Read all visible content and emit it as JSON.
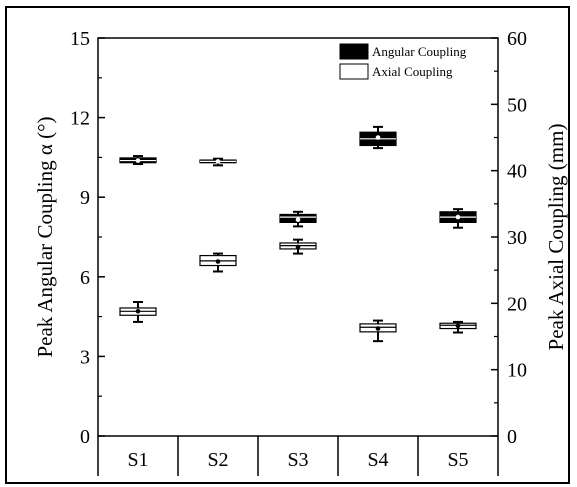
{
  "chart_data": {
    "type": "box",
    "categories": [
      "S1",
      "S2",
      "S3",
      "S4",
      "S5"
    ],
    "left_axis": {
      "label": "Peak Angular Coupling α (°)",
      "ylim": [
        0,
        15
      ],
      "ticks": [
        "0",
        "3",
        "6",
        "9",
        "12",
        "15"
      ]
    },
    "right_axis": {
      "label": "Peak Axial Coupling (mm)",
      "ylim": [
        0,
        60
      ],
      "ticks": [
        "0",
        "10",
        "20",
        "30",
        "40",
        "50",
        "60"
      ]
    },
    "legend_position": "top-right",
    "grid": false,
    "series": [
      {
        "name": "Angular Coupling",
        "axis": "left",
        "fill": "#000000",
        "boxes": [
          {
            "category": "S1",
            "min": 10.25,
            "q1": 10.3,
            "median": 10.38,
            "q3": 10.48,
            "max": 10.55,
            "mean": 10.38
          },
          {
            "category": "S2",
            "min": 10.2,
            "q1": 10.3,
            "median": 10.35,
            "q3": 10.4,
            "max": 10.45,
            "mean": 10.35
          },
          {
            "category": "S3",
            "min": 7.9,
            "q1": 8.05,
            "median": 8.25,
            "q3": 8.35,
            "max": 8.45,
            "mean": 8.15
          },
          {
            "category": "S4",
            "min": 10.85,
            "q1": 10.95,
            "median": 11.2,
            "q3": 11.45,
            "max": 11.65,
            "mean": 11.25
          },
          {
            "category": "S5",
            "min": 7.85,
            "q1": 8.05,
            "median": 8.25,
            "q3": 8.45,
            "max": 8.55,
            "mean": 8.25
          }
        ]
      },
      {
        "name": "Axial Coupling",
        "axis": "right",
        "fill": "#ffffff",
        "boxes": [
          {
            "category": "S1",
            "min": 17.2,
            "q1": 18.2,
            "median": 18.8,
            "q3": 19.3,
            "max": 20.2,
            "mean": 18.8
          },
          {
            "category": "S2",
            "min": 24.8,
            "q1": 25.7,
            "median": 26.4,
            "q3": 27.2,
            "max": 27.5,
            "mean": 26.3
          },
          {
            "category": "S3",
            "min": 27.5,
            "q1": 28.2,
            "median": 28.7,
            "q3": 29.1,
            "max": 29.6,
            "mean": 28.5
          },
          {
            "category": "S4",
            "min": 14.3,
            "q1": 15.7,
            "median": 16.4,
            "q3": 16.9,
            "max": 17.4,
            "mean": 16.2
          },
          {
            "category": "S5",
            "min": 15.6,
            "q1": 16.2,
            "median": 16.7,
            "q3": 17.0,
            "max": 17.2,
            "mean": 16.6
          }
        ]
      }
    ]
  }
}
